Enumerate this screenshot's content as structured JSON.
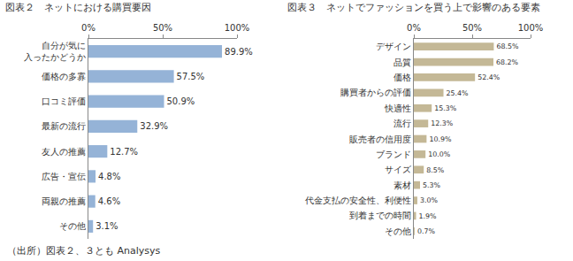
{
  "chart_data": [
    {
      "type": "bar",
      "orientation": "horizontal",
      "title": "図表２　ネットにおける購買要因",
      "categories": [
        "自分が気に入ったかどうか",
        "価格の多寡",
        "口コミ評価",
        "最新の流行",
        "友人の推薦",
        "広告・宣伝",
        "両親の推薦",
        "その他"
      ],
      "values": [
        89.9,
        57.5,
        50.9,
        32.9,
        12.7,
        4.8,
        4.6,
        3.1
      ],
      "value_labels": [
        "89.9%",
        "57.5%",
        "50.9%",
        "32.9%",
        "12.7%",
        "4.8%",
        "4.6%",
        "3.1%"
      ],
      "color": "#95b3d7",
      "xlim": [
        0,
        100
      ],
      "xticks": [
        {
          "value": 0,
          "label": "0%"
        },
        {
          "value": 50,
          "label": "50%"
        },
        {
          "value": 100,
          "label": "100%"
        }
      ],
      "grid": false,
      "data_labels": true
    },
    {
      "type": "bar",
      "orientation": "horizontal",
      "title": "図表３　ネットでファッションを買う上で影響のある要素",
      "categories": [
        "デザイン",
        "品質",
        "価格",
        "購買者からの評価",
        "快適性",
        "流行",
        "販売者の信用度",
        "ブランド",
        "サイズ",
        "素材",
        "代金支払の安全性、利便性",
        "到着までの時間",
        "その他"
      ],
      "values": [
        68.5,
        68.2,
        52.4,
        25.4,
        15.3,
        12.3,
        10.9,
        10.0,
        8.5,
        5.3,
        3.0,
        1.9,
        0.7
      ],
      "value_labels": [
        "68.5%",
        "68.2%",
        "52.4%",
        "25.4%",
        "15.3%",
        "12.3%",
        "10.9%",
        "10.0%",
        "8.5%",
        "5.3%",
        "3.0%",
        "1.9%",
        "0.7%"
      ],
      "color": "#c4b896",
      "xlim": [
        0,
        100
      ],
      "xticks": [
        {
          "value": 0,
          "label": "0%"
        },
        {
          "value": 50,
          "label": "50%"
        },
        {
          "value": 100,
          "label": "100%"
        }
      ],
      "grid": false,
      "data_labels": true
    }
  ],
  "source": "（出所）図表２、３とも Analysys"
}
